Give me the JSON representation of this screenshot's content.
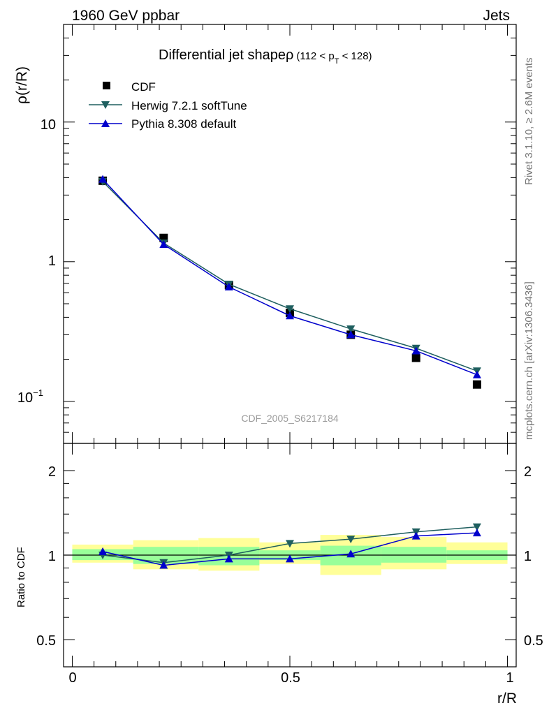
{
  "header": {
    "left": "1960 GeV ppbar",
    "right": "Jets"
  },
  "side": {
    "rivet": "Rivet 3.1.10, ≥ 2.6M events",
    "mcplots": "mcplots.cern.ch [arXiv:1306.3436]"
  },
  "chart_data": [
    {
      "type": "scatter",
      "title_main": "Differential jet shapeρ",
      "title_cut_open": "(112 < p",
      "title_cut_sub": "T",
      "title_cut_close": " < 128)",
      "ylabel": "ρ(r/R)",
      "yscale": "log",
      "ylim": [
        0.05,
        50
      ],
      "xlim": [
        -0.02,
        1.02
      ],
      "watermark": "CDF_2005_S6217184",
      "y_ticks": [
        {
          "value": 10,
          "label": "10"
        },
        {
          "value": 1,
          "label": "1"
        },
        {
          "value": 0.1,
          "label": "10",
          "sup": "−1"
        }
      ],
      "x": [
        0.07,
        0.21,
        0.36,
        0.5,
        0.64,
        0.79,
        0.93
      ],
      "series": [
        {
          "name": "CDF",
          "color": "#000000",
          "marker": "square",
          "values": [
            3.8,
            1.48,
            0.68,
            0.43,
            0.3,
            0.205,
            0.132
          ]
        },
        {
          "name": "Herwig 7.2.1 softTune",
          "color": "#1f5f5f",
          "marker": "triangle-down",
          "values": [
            3.75,
            1.36,
            0.69,
            0.46,
            0.33,
            0.24,
            0.165
          ]
        },
        {
          "name": "Pythia 8.308 default",
          "color": "#0000cc",
          "marker": "triangle-up",
          "values": [
            3.9,
            1.33,
            0.66,
            0.41,
            0.3,
            0.23,
            0.155
          ]
        }
      ]
    },
    {
      "type": "line",
      "ylabel": "Ratio to CDF",
      "xlabel": "r/R",
      "yscale": "log",
      "ylim": [
        0.4,
        2.5
      ],
      "xlim": [
        -0.02,
        1.02
      ],
      "y_ticks": [
        {
          "value": 2,
          "label": "2"
        },
        {
          "value": 1,
          "label": "1"
        },
        {
          "value": 0.5,
          "label": "0.5"
        }
      ],
      "x_ticks": [
        {
          "value": 0,
          "label": "0"
        },
        {
          "value": 0.5,
          "label": "0.5"
        },
        {
          "value": 1,
          "label": "1"
        }
      ],
      "band_edges": [
        0.0,
        0.14,
        0.29,
        0.43,
        0.57,
        0.71,
        0.86,
        1.0
      ],
      "band_inner": [
        [
          0.96,
          1.05
        ],
        [
          0.93,
          1.07
        ],
        [
          0.92,
          1.07
        ],
        [
          0.96,
          1.04
        ],
        [
          0.92,
          1.08
        ],
        [
          0.94,
          1.07
        ],
        [
          0.96,
          1.04
        ]
      ],
      "band_outer": [
        [
          0.94,
          1.09
        ],
        [
          0.89,
          1.13
        ],
        [
          0.88,
          1.15
        ],
        [
          0.93,
          1.11
        ],
        [
          0.85,
          1.18
        ],
        [
          0.89,
          1.16
        ],
        [
          0.93,
          1.11
        ]
      ],
      "band_colors": {
        "inner": "#99ff99",
        "outer": "#ffff99"
      },
      "x": [
        0.07,
        0.21,
        0.36,
        0.5,
        0.64,
        0.79,
        0.93
      ],
      "series": [
        {
          "name": "Herwig 7.2.1 softTune",
          "color": "#1f5f5f",
          "marker": "triangle-down",
          "values": [
            1.0,
            0.94,
            1.0,
            1.1,
            1.14,
            1.21,
            1.26
          ]
        },
        {
          "name": "Pythia 8.308 default",
          "color": "#0000cc",
          "marker": "triangle-up",
          "values": [
            1.03,
            0.92,
            0.97,
            0.97,
            1.01,
            1.17,
            1.2
          ]
        }
      ]
    }
  ]
}
